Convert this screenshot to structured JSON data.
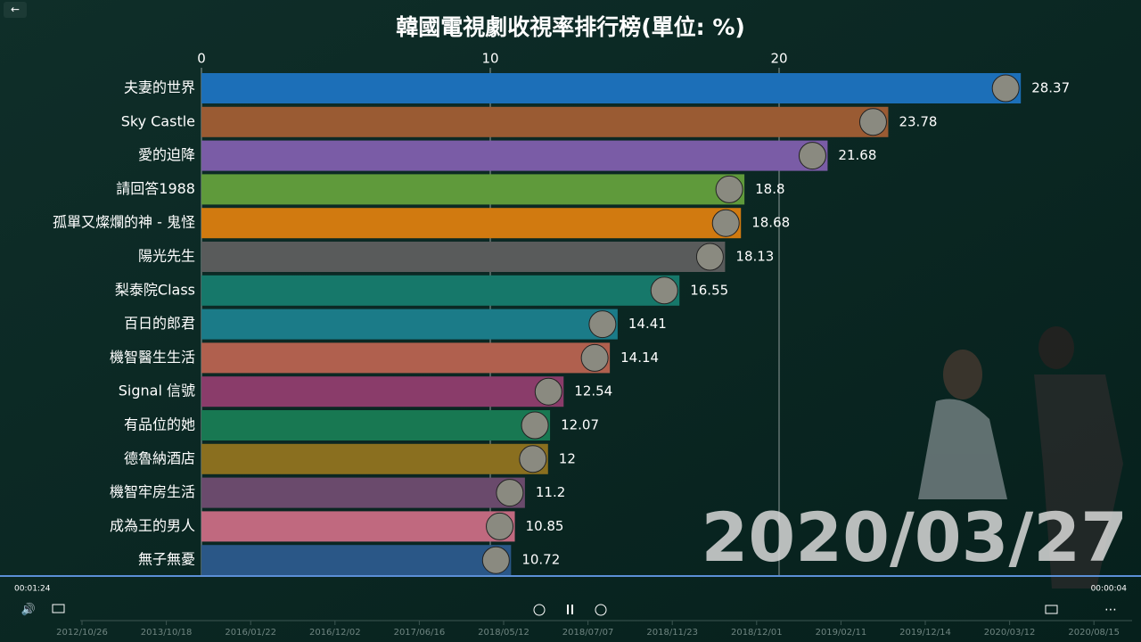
{
  "chart_data": {
    "type": "bar",
    "orientation": "horizontal",
    "title": "韓國電視劇收視率排行榜(單位: %)",
    "categories": [
      "夫妻的世界",
      "Sky Castle",
      "愛的迫降",
      "請回答1988",
      "孤單又燦爛的神 - 鬼怪",
      "陽光先生",
      "梨泰院Class",
      "百日的郎君",
      "機智醫生生活",
      "Signal 信號",
      "有品位的她",
      "德魯納酒店",
      "機智牢房生活",
      "成為王的男人",
      "無子無憂"
    ],
    "values": [
      28.37,
      23.78,
      21.68,
      18.8,
      18.68,
      18.13,
      16.55,
      14.41,
      14.14,
      12.54,
      12.07,
      12,
      11.2,
      10.85,
      10.72
    ],
    "colors": [
      "#1c6fb8",
      "#9a5b33",
      "#7a5ca6",
      "#5f9a3b",
      "#d17a10",
      "#595b5b",
      "#16786a",
      "#1b7b88",
      "#b0604e",
      "#8a3c6a",
      "#187852",
      "#8a6f1f",
      "#6a4a6c",
      "#c0697f",
      "#2a5787"
    ],
    "xlim": [
      0,
      32
    ],
    "xticks": [
      0,
      10,
      20
    ],
    "grid": true,
    "date_label": "2020/03/27"
  },
  "player": {
    "elapsed": "00:01:24",
    "remaining": "00:00:04",
    "timeline": [
      "2012/10/26",
      "2013/10/18",
      "2016/01/22",
      "2016/12/02",
      "2017/06/16",
      "2018/05/12",
      "2018/07/07",
      "2018/11/23",
      "2018/12/01",
      "2019/02/11",
      "2019/12/14",
      "2020/03/12",
      "2020/08/15"
    ]
  }
}
